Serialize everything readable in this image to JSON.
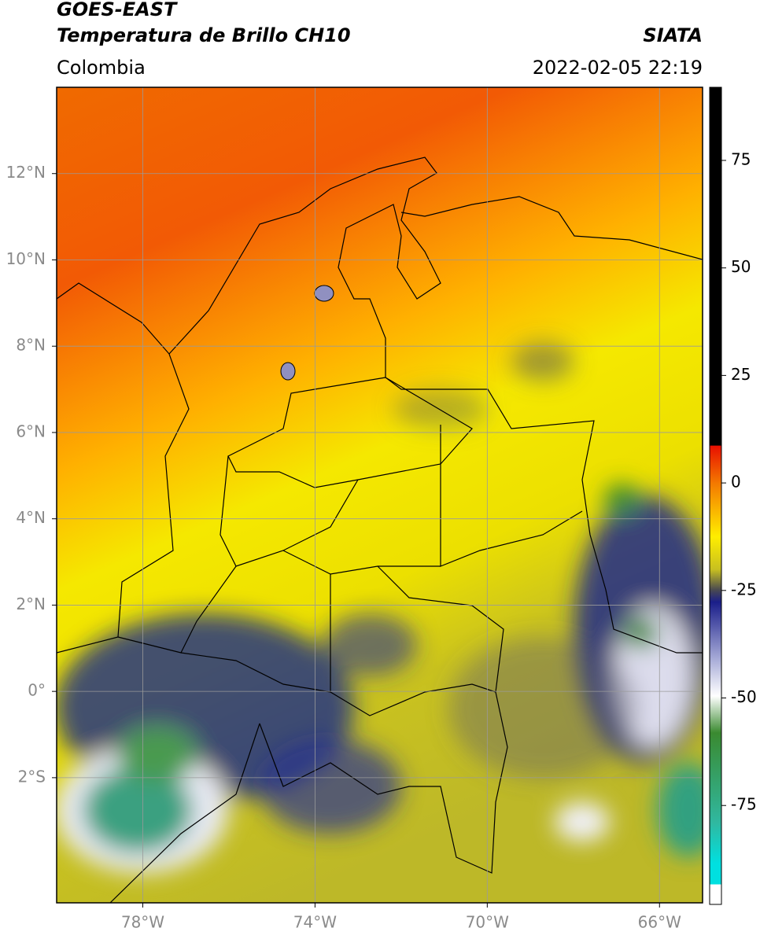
{
  "header": {
    "title": "GOES-EAST",
    "product": "Temperatura de Brillo CH10",
    "region": "Colombia",
    "source": "SIATA",
    "datetime": "2022-02-05 22:19"
  },
  "map": {
    "xlim": [
      -80,
      -65
    ],
    "ylim": [
      -4.9,
      14
    ],
    "xticks": [
      {
        "value": -78,
        "label": "78°W"
      },
      {
        "value": -74,
        "label": "74°W"
      },
      {
        "value": -70,
        "label": "70°W"
      },
      {
        "value": -66,
        "label": "66°W"
      }
    ],
    "yticks": [
      {
        "value": 12,
        "label": "12°N"
      },
      {
        "value": 10,
        "label": "10°N"
      },
      {
        "value": 8,
        "label": "8°N"
      },
      {
        "value": 6,
        "label": "6°N"
      },
      {
        "value": 4,
        "label": "4°N"
      },
      {
        "value": 2,
        "label": "2°N"
      },
      {
        "value": 0,
        "label": "0°"
      },
      {
        "value": -2,
        "label": "2°S"
      }
    ],
    "grid": true
  },
  "colorbar": {
    "lim": [
      -98,
      92
    ],
    "ticks": [
      75,
      50,
      25,
      0,
      -25,
      -50,
      -75
    ]
  }
}
